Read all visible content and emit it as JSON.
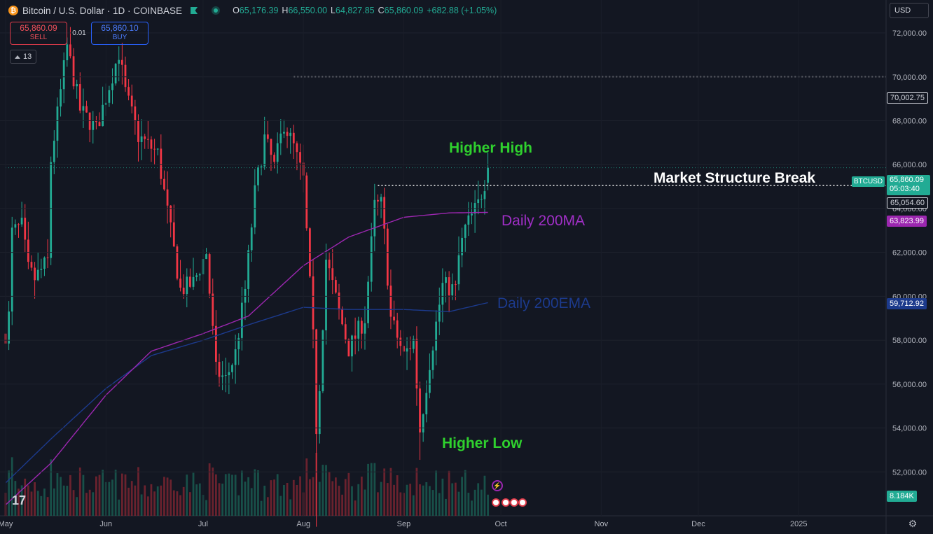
{
  "header": {
    "title": "Bitcoin / U.S. Dollar · 1D · COINBASE",
    "ohlc": [
      {
        "k": "O",
        "v": "65,176.39"
      },
      {
        "k": "H",
        "v": "66,550.00"
      },
      {
        "k": "L",
        "v": "64,827.85"
      },
      {
        "k": "C",
        "v": "65,860.09"
      }
    ],
    "change": "+682.88 (+1.05%)"
  },
  "trade": {
    "sell_price": "65,860.09",
    "sell_label": "SELL",
    "spread": "0.01",
    "buy_price": "65,860.10",
    "buy_label": "BUY"
  },
  "indicator_count": "13",
  "currency": "USD",
  "tags": {
    "symbol": "BTCUSD",
    "last_price": "65,860.09",
    "countdown": "05:03:40",
    "level_high": "70,002.75",
    "level_break": "65,054.60",
    "ma200": "63,823.99",
    "ema200": "59,712.92",
    "volume": "8.184K"
  },
  "annotations": {
    "higher_high": "Higher High",
    "higher_low": "Higher Low",
    "msb": "Market Structure Break",
    "ma": "Daily 200MA",
    "ema": "Daily 200EMA"
  },
  "colors": {
    "up": "#22ab94",
    "down": "#f23645",
    "ma": "#9c27b0",
    "ema": "#1c3a8c",
    "background": "#131722"
  },
  "chart_data": {
    "type": "candlestick",
    "ylim": [
      50000,
      73500
    ],
    "y_ticks": [
      52000,
      54000,
      56000,
      58000,
      60000,
      62000,
      64000,
      66000,
      68000,
      70000,
      72000
    ],
    "y_tick_labels": [
      "52,000.00",
      "54,000.00",
      "56,000.00",
      "58,000.00",
      "60,000.00",
      "62,000.00",
      "64,000.00",
      "66,000.00",
      "68,000.00",
      "70,000.00",
      "72,000.00"
    ],
    "x_labels": [
      {
        "label": "May",
        "date": "2024-05-01"
      },
      {
        "label": "Jun",
        "date": "2024-06-01"
      },
      {
        "label": "Jul",
        "date": "2024-07-01"
      },
      {
        "label": "Aug",
        "date": "2024-08-01"
      },
      {
        "label": "Sep",
        "date": "2024-09-01"
      },
      {
        "label": "Oct",
        "date": "2024-10-01"
      },
      {
        "label": "Nov",
        "date": "2024-11-01"
      },
      {
        "label": "Dec",
        "date": "2024-12-01"
      },
      {
        "label": "2025",
        "date": "2025-01-01"
      }
    ],
    "x_range": [
      "2024-05-01",
      "2025-01-28"
    ],
    "close_anchors": [
      [
        "2024-05-01",
        58300
      ],
      [
        "2024-05-02",
        59100
      ],
      [
        "2024-05-03",
        62900
      ],
      [
        "2024-05-06",
        63200
      ],
      [
        "2024-05-08",
        61200
      ],
      [
        "2024-05-10",
        60800
      ],
      [
        "2024-05-14",
        61600
      ],
      [
        "2024-05-15",
        66200
      ],
      [
        "2024-05-20",
        71400
      ],
      [
        "2024-05-24",
        68500
      ],
      [
        "2024-05-29",
        67600
      ],
      [
        "2024-06-05",
        71100
      ],
      [
        "2024-06-07",
        69300
      ],
      [
        "2024-06-11",
        67300
      ],
      [
        "2024-06-17",
        66500
      ],
      [
        "2024-06-24",
        60300
      ],
      [
        "2024-06-28",
        60600
      ],
      [
        "2024-07-02",
        62000
      ],
      [
        "2024-07-05",
        56600
      ],
      [
        "2024-07-08",
        56200
      ],
      [
        "2024-07-11",
        57400
      ],
      [
        "2024-07-14",
        60300
      ],
      [
        "2024-07-17",
        64700
      ],
      [
        "2024-07-20",
        67200
      ],
      [
        "2024-07-23",
        65900
      ],
      [
        "2024-07-26",
        67900
      ],
      [
        "2024-07-29",
        66800
      ],
      [
        "2024-08-01",
        65300
      ],
      [
        "2024-08-04",
        58100
      ],
      [
        "2024-08-05",
        54000
      ],
      [
        "2024-08-06",
        56000
      ],
      [
        "2024-08-08",
        61700
      ],
      [
        "2024-08-12",
        59300
      ],
      [
        "2024-08-15",
        57600
      ],
      [
        "2024-08-20",
        59000
      ],
      [
        "2024-08-23",
        64100
      ],
      [
        "2024-08-25",
        64200
      ],
      [
        "2024-08-26",
        62800
      ],
      [
        "2024-08-28",
        59000
      ],
      [
        "2024-09-01",
        57300
      ],
      [
        "2024-09-04",
        58000
      ],
      [
        "2024-09-06",
        53900
      ],
      [
        "2024-09-09",
        57000
      ],
      [
        "2024-09-13",
        60500
      ],
      [
        "2024-09-17",
        60300
      ],
      [
        "2024-09-18",
        61800
      ],
      [
        "2024-09-20",
        63100
      ],
      [
        "2024-09-24",
        64200
      ],
      [
        "2024-09-26",
        65200
      ],
      [
        "2024-09-27",
        65860
      ]
    ],
    "ma200_anchors": [
      [
        "2024-05-01",
        50500
      ],
      [
        "2024-05-15",
        52400
      ],
      [
        "2024-06-01",
        55500
      ],
      [
        "2024-06-15",
        57500
      ],
      [
        "2024-07-01",
        58300
      ],
      [
        "2024-07-15",
        59100
      ],
      [
        "2024-08-01",
        61400
      ],
      [
        "2024-08-15",
        62700
      ],
      [
        "2024-09-01",
        63600
      ],
      [
        "2024-09-15",
        63800
      ],
      [
        "2024-09-27",
        63824
      ]
    ],
    "ema200_anchors": [
      [
        "2024-05-01",
        51500
      ],
      [
        "2024-05-15",
        53500
      ],
      [
        "2024-06-01",
        55800
      ],
      [
        "2024-06-15",
        57300
      ],
      [
        "2024-07-01",
        58000
      ],
      [
        "2024-07-15",
        58700
      ],
      [
        "2024-08-01",
        59500
      ],
      [
        "2024-08-15",
        59400
      ],
      [
        "2024-09-01",
        59400
      ],
      [
        "2024-09-15",
        59300
      ],
      [
        "2024-09-27",
        59713
      ]
    ],
    "levels": [
      {
        "name": "previous-high",
        "value": 70002.75,
        "from": "2024-07-29"
      },
      {
        "name": "structure-break",
        "value": 65054.6,
        "from": "2024-08-24"
      },
      {
        "name": "last-price",
        "value": 65860.09,
        "from": "2024-05-01"
      }
    ],
    "higher_high": {
      "date": "2024-09-27",
      "value": 66550
    },
    "higher_low": {
      "date": "2024-09-06",
      "value": 52550
    },
    "last_candle": {
      "date": "2024-09-27",
      "open": 65176.39,
      "high": 66550,
      "low": 64827.85,
      "close": 65860.09
    }
  }
}
